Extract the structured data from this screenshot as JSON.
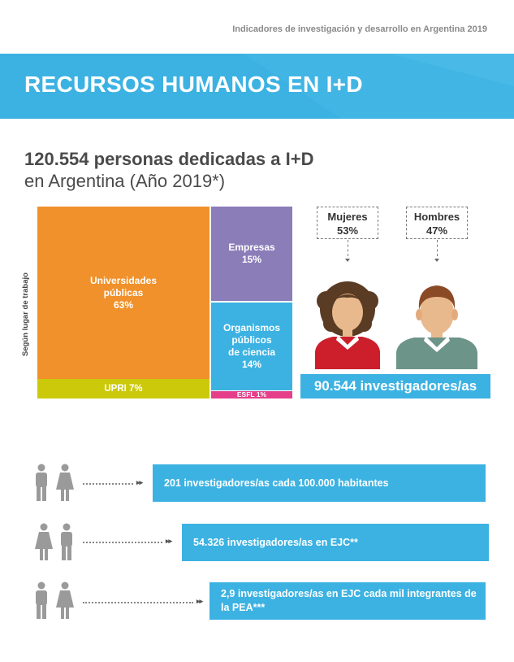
{
  "header": {
    "top_title": "Indicadores de investigación y desarrollo en Argentina 2019",
    "banner_title": "RECURSOS HUMANOS EN I+D"
  },
  "headline": {
    "line1": "120.554 personas dedicadas a I+D",
    "line2": "en Argentina (Año 2019*)"
  },
  "treemap": {
    "axis_label": "Según lugar de trabajo",
    "blocks": [
      {
        "label": "Universidades\npúblicas",
        "pct": "63%",
        "color": "#f0912b"
      },
      {
        "label": "UPRI",
        "pct": "7%",
        "color": "#cbc90a"
      },
      {
        "label": "Empresas",
        "pct": "15%",
        "color": "#8b7db8"
      },
      {
        "label": "Organismos\npúblicos\nde ciencia",
        "pct": "14%",
        "color": "#3cb2e2"
      },
      {
        "label": "ESFL",
        "pct": "1%",
        "color": "#e63f8a"
      }
    ],
    "upri_text": "UPRI 7%",
    "esfl_text": "ESFL 1%"
  },
  "gender": {
    "women_label": "Mujeres",
    "women_pct": "53%",
    "men_label": "Hombres",
    "men_pct": "47%",
    "investigators": "90.544 investigadores/as"
  },
  "stats": [
    {
      "text": "201 investigadores/as cada 100.000 habitantes"
    },
    {
      "text": "54.326 investigadores/as en EJC**"
    },
    {
      "text": "2,9 investigadores/as en EJC cada mil integrantes de la PEA***"
    }
  ],
  "colors": {
    "accent": "#3cb2e2",
    "icon_gray": "#9a9a9a"
  }
}
